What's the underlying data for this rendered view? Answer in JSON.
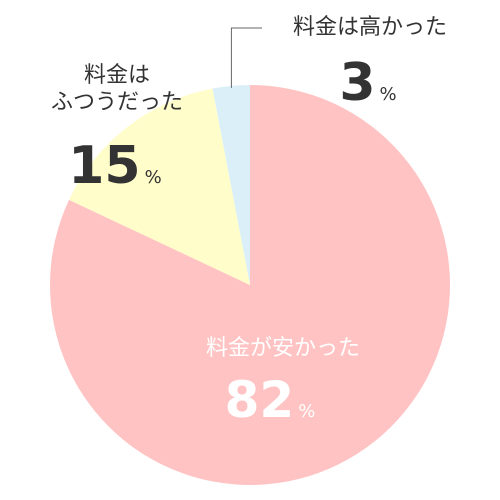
{
  "chart_data": {
    "type": "pie",
    "unit": "%",
    "slices": [
      {
        "label": "料金が安かった",
        "value": 82,
        "color": "#ffc3c3",
        "label_color": "#ffffff"
      },
      {
        "label": "料金はふつうだった",
        "label_lines": [
          "料金は",
          "ふつうだった"
        ],
        "value": 15,
        "color": "#fffdc9",
        "label_color": "#333333"
      },
      {
        "label": "料金は高かった",
        "value": 3,
        "color": "#dbeff9",
        "label_color": "#333333"
      }
    ]
  }
}
